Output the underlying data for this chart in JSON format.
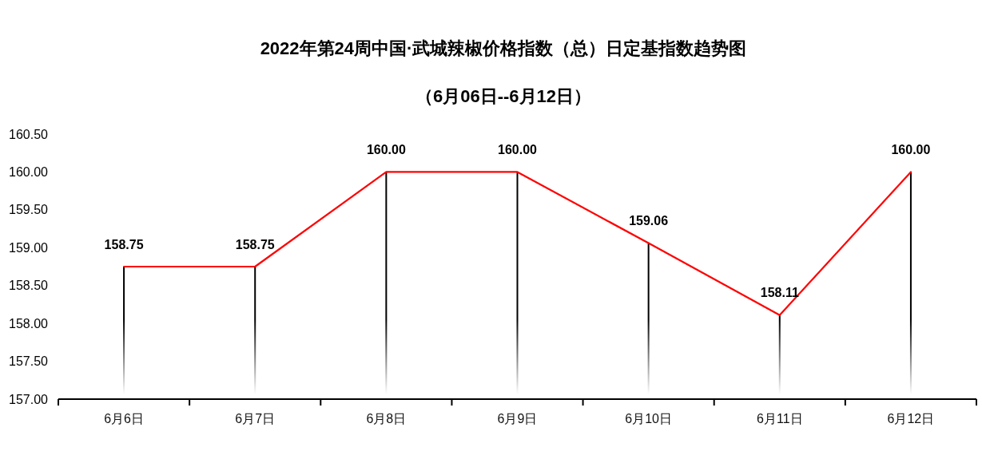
{
  "chart_data": {
    "type": "line",
    "title": "2022年第24周中国·武城辣椒价格指数（总）日定基指数趋势图",
    "subtitle": "（6月06日--6月12日）",
    "categories": [
      "6月6日",
      "6月7日",
      "6月8日",
      "6月9日",
      "6月10日",
      "6月11日",
      "6月12日"
    ],
    "series": [
      {
        "type": "bar",
        "color": "#000000",
        "values": [
          158.75,
          158.75,
          160.0,
          160.0,
          159.06,
          158.11,
          160.0
        ]
      },
      {
        "color": "#ff0000",
        "values": [
          158.75,
          158.75,
          160.0,
          160.0,
          159.06,
          158.11,
          160.0
        ],
        "value_labels": [
          "158.75",
          "158.75",
          "160.00",
          "160.00",
          "159.06",
          "158.11",
          "160.00"
        ]
      }
    ],
    "ylim": [
      157,
      160.5
    ],
    "yticks": [
      {
        "value": 157,
        "label": "157.00"
      },
      {
        "value": 157.5,
        "label": "157.50"
      },
      {
        "value": 158,
        "label": "158.00"
      },
      {
        "value": 158.5,
        "label": "158.50"
      },
      {
        "value": 159,
        "label": "159.00"
      },
      {
        "value": 159.5,
        "label": "159.50"
      },
      {
        "value": 160,
        "label": "160.00"
      },
      {
        "value": 160.5,
        "label": "160.50"
      }
    ]
  }
}
